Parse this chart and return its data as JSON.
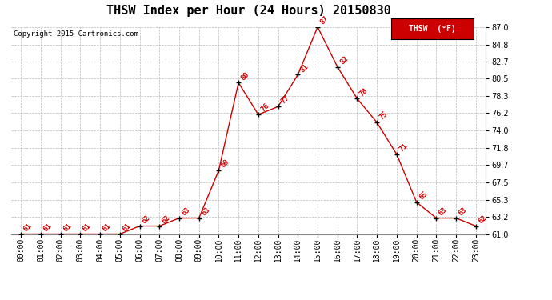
{
  "title": "THSW Index per Hour (24 Hours) 20150830",
  "copyright": "Copyright 2015 Cartronics.com",
  "legend_label": "THSW  (°F)",
  "hours": [
    "00:00",
    "01:00",
    "02:00",
    "03:00",
    "04:00",
    "05:00",
    "06:00",
    "07:00",
    "08:00",
    "09:00",
    "10:00",
    "11:00",
    "12:00",
    "13:00",
    "14:00",
    "15:00",
    "16:00",
    "17:00",
    "18:00",
    "19:00",
    "20:00",
    "21:00",
    "22:00",
    "23:00"
  ],
  "values": [
    61,
    61,
    61,
    61,
    61,
    61,
    62,
    62,
    63,
    63,
    69,
    80,
    76,
    77,
    81,
    87,
    82,
    78,
    75,
    71,
    65,
    63,
    63,
    62
  ],
  "line_color": "#cc0000",
  "marker_color": "#000000",
  "label_color": "#cc0000",
  "background_color": "#ffffff",
  "grid_color": "#bbbbbb",
  "ylim_min": 61.0,
  "ylim_max": 87.0,
  "yticks": [
    61.0,
    63.2,
    65.3,
    67.5,
    69.7,
    71.8,
    74.0,
    76.2,
    78.3,
    80.5,
    82.7,
    84.8,
    87.0
  ],
  "title_fontsize": 11,
  "copyright_fontsize": 6.5,
  "label_fontsize": 6.5,
  "tick_fontsize": 7,
  "legend_bg": "#cc0000",
  "legend_text_color": "#ffffff"
}
